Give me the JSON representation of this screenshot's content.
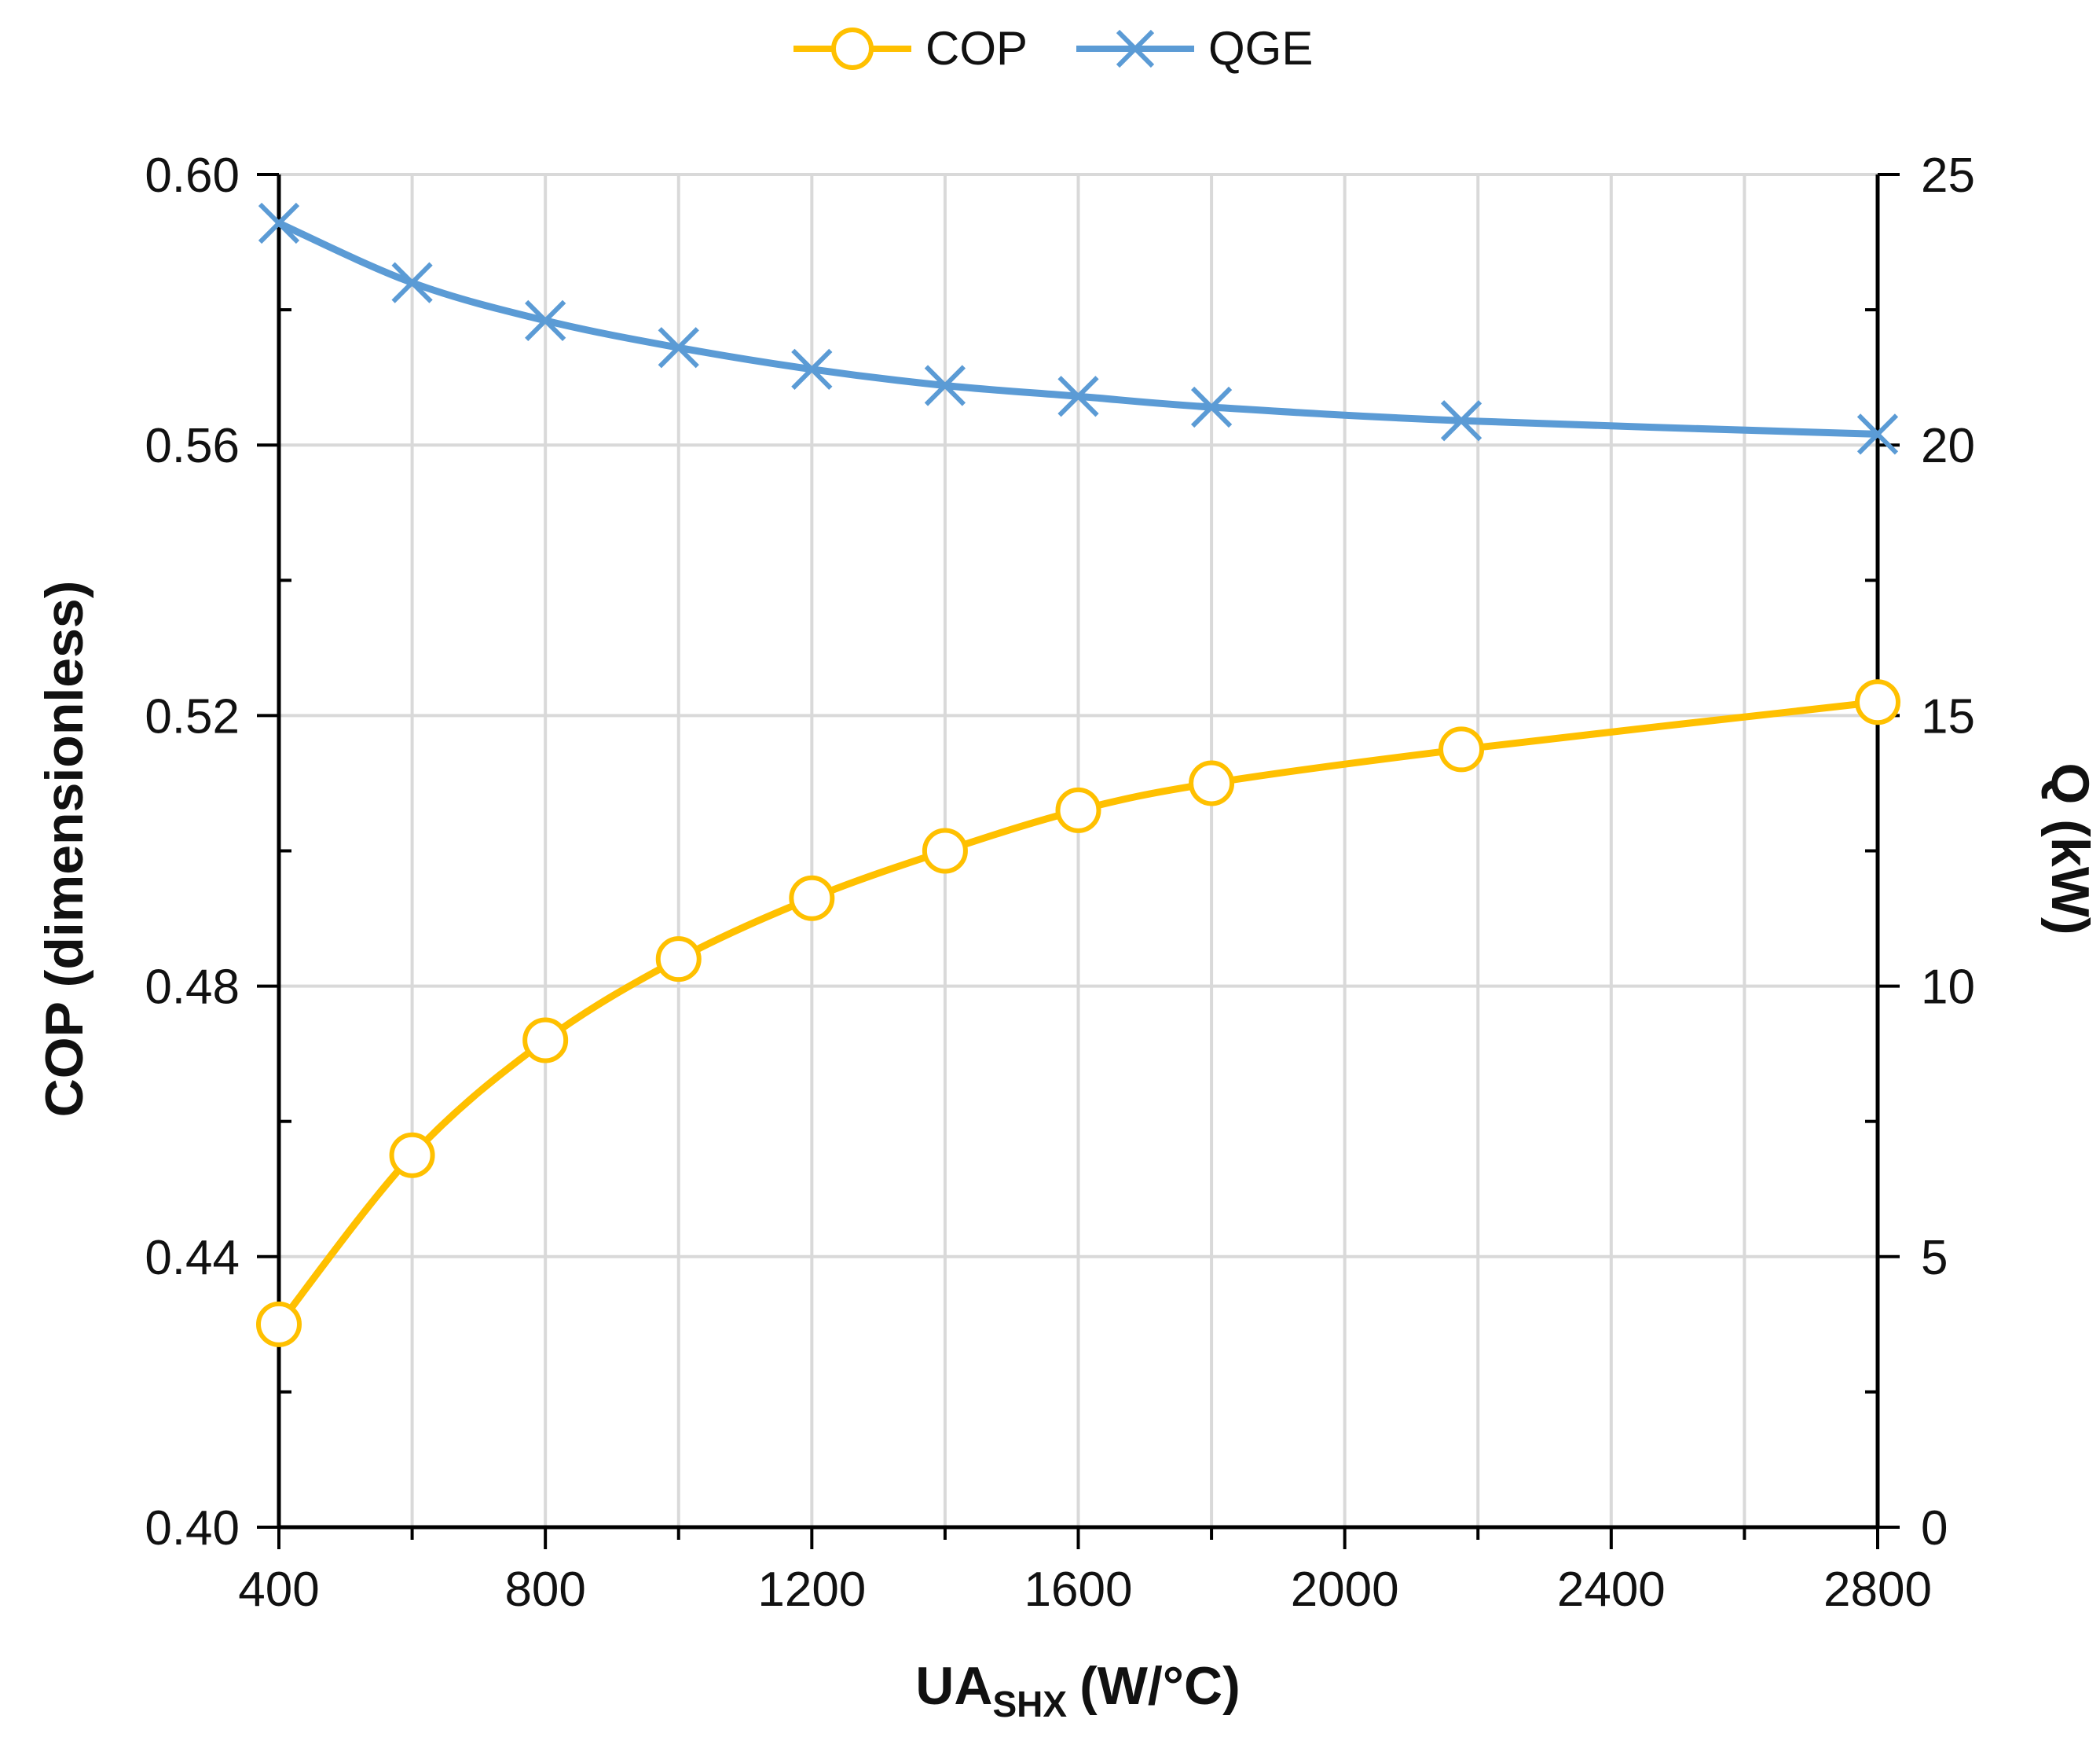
{
  "chart_data": {
    "type": "line",
    "title": "",
    "xlabel_main": "UA",
    "xlabel_sub": "SHX",
    "xlabel_unit": "(W/°C)",
    "ylabel_left": "COP (dimensionless)",
    "ylabel_right": "Q  (kW)",
    "xlim": [
      400,
      2800
    ],
    "ylim_left": [
      0.4,
      0.6
    ],
    "ylim_right": [
      0,
      25
    ],
    "x_ticks": [
      "400",
      "800",
      "1200",
      "1600",
      "2000",
      "2400",
      "2800"
    ],
    "y_left_ticks": [
      "0.40",
      "0.44",
      "0.48",
      "0.52",
      "0.56",
      "0.60"
    ],
    "y_right_ticks": [
      "0",
      "5",
      "10",
      "15",
      "20",
      "25"
    ],
    "grid": true,
    "legend_position": "top-center",
    "series": [
      {
        "name": "COP",
        "axis": "left",
        "color": "#FFC000",
        "marker": "circle",
        "x": [
          400,
          600,
          800,
          1000,
          1200,
          1400,
          1600,
          1800,
          2175,
          2800
        ],
        "values": [
          0.43,
          0.455,
          0.472,
          0.484,
          0.493,
          0.5,
          0.506,
          0.51,
          0.515,
          0.522
        ]
      },
      {
        "name": "QGE",
        "axis": "right",
        "color": "#5B9BD5",
        "marker": "x",
        "x": [
          400,
          600,
          800,
          1000,
          1200,
          1400,
          1600,
          1800,
          2175,
          2800
        ],
        "values": [
          24.1,
          23.0,
          22.3,
          21.8,
          21.4,
          21.1,
          20.9,
          20.7,
          20.45,
          20.2
        ]
      }
    ]
  }
}
